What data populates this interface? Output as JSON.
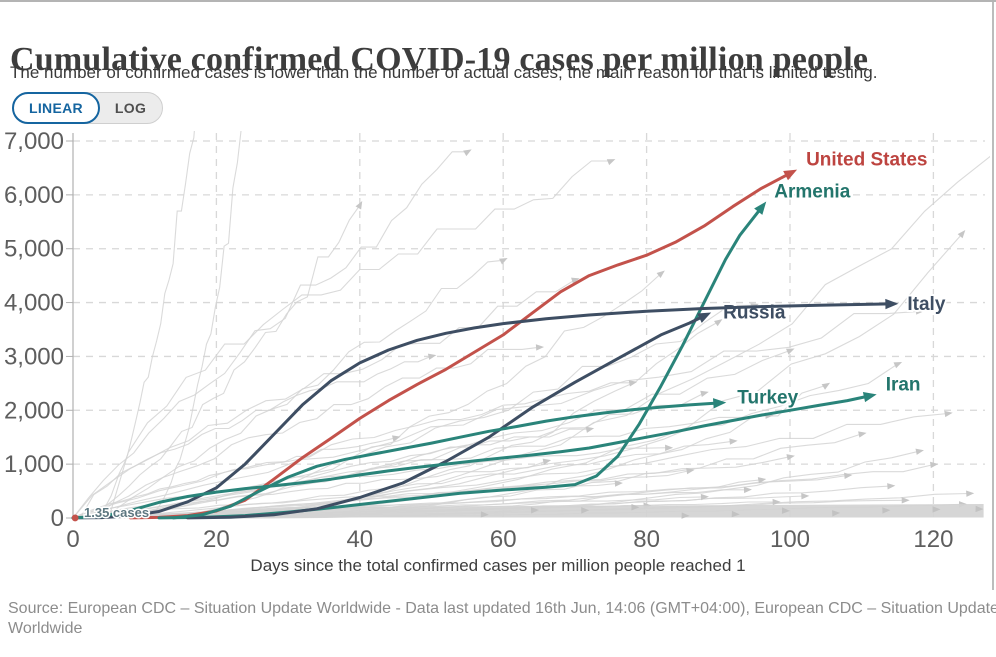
{
  "page": {
    "title": "Cumulative confirmed COVID-19 cases per million people",
    "subtitle": "The number of confirmed cases is lower than the number of actual cases; the main reason for that is limited testing."
  },
  "controls": {
    "linear_label": "LINEAR",
    "log_label": "LOG",
    "active": "LINEAR",
    "accent_color": "#1565a0"
  },
  "footer": {
    "source": "Source: European CDC – Situation Update Worldwide - Data last updated 16th Jun, 14:06 (GMT+04:00), European CDC – Situation Update Worldwide"
  },
  "chart_data": {
    "type": "line",
    "title": "Cumulative confirmed COVID-19 cases per million people",
    "xlabel": "Days since the total confirmed cases per million people reached 1",
    "ylabel": "",
    "xlim": [
      0,
      120
    ],
    "ylim": [
      0,
      7000
    ],
    "x_ticks": [
      0,
      20,
      40,
      60,
      80,
      100,
      120
    ],
    "y_ticks": [
      0,
      1000,
      2000,
      3000,
      4000,
      5000,
      6000,
      7000
    ],
    "grid": true,
    "legend_position": "end-of-line-labels",
    "annotation": {
      "text": "1.35 cases",
      "day": 0.3,
      "value": 1.35,
      "color": "#5d7780",
      "dot_color": "#c3524b"
    },
    "colors": {
      "highlight_red": "#c3524b",
      "highlight_teal": "#2a847a",
      "highlight_slate": "#3e4e63",
      "background_line": "#d4d4d4",
      "grid": "#d8d8d8",
      "axis": "#b0b0b0",
      "tick_text": "#5e5e5e"
    },
    "series": [
      {
        "name": "United States",
        "color": "#c3524b",
        "label_color": "#bd4440",
        "label_dx": 9,
        "label_dy": -4,
        "points": [
          [
            8,
            1
          ],
          [
            12,
            12
          ],
          [
            16,
            45
          ],
          [
            20,
            130
          ],
          [
            24,
            330
          ],
          [
            28,
            720
          ],
          [
            32,
            1120
          ],
          [
            36,
            1480
          ],
          [
            40,
            1850
          ],
          [
            44,
            2180
          ],
          [
            48,
            2480
          ],
          [
            52,
            2760
          ],
          [
            56,
            3080
          ],
          [
            60,
            3400
          ],
          [
            64,
            3800
          ],
          [
            68,
            4200
          ],
          [
            72,
            4500
          ],
          [
            76,
            4700
          ],
          [
            80,
            4880
          ],
          [
            84,
            5120
          ],
          [
            88,
            5420
          ],
          [
            92,
            5780
          ],
          [
            96,
            6120
          ],
          [
            100,
            6400
          ]
        ]
      },
      {
        "name": "Armenia",
        "color": "#2a847a",
        "label_color": "#23756c",
        "label_dx": 8,
        "label_dy": -4,
        "points": [
          [
            12,
            1
          ],
          [
            18,
            12
          ],
          [
            24,
            45
          ],
          [
            30,
            110
          ],
          [
            36,
            190
          ],
          [
            42,
            280
          ],
          [
            48,
            370
          ],
          [
            54,
            460
          ],
          [
            60,
            520
          ],
          [
            66,
            570
          ],
          [
            70,
            620
          ],
          [
            73,
            780
          ],
          [
            76,
            1150
          ],
          [
            79,
            1750
          ],
          [
            82,
            2450
          ],
          [
            85,
            3200
          ],
          [
            88,
            4000
          ],
          [
            91,
            4800
          ],
          [
            93,
            5250
          ],
          [
            96,
            5760
          ]
        ]
      },
      {
        "name": "Russia",
        "color": "#3e4e63",
        "label_color": "#3e4e63",
        "label_dx": 12,
        "label_dy": 6,
        "points": [
          [
            16,
            1
          ],
          [
            22,
            15
          ],
          [
            28,
            60
          ],
          [
            34,
            170
          ],
          [
            40,
            380
          ],
          [
            46,
            650
          ],
          [
            52,
            1050
          ],
          [
            58,
            1500
          ],
          [
            64,
            2050
          ],
          [
            70,
            2520
          ],
          [
            76,
            2960
          ],
          [
            82,
            3400
          ],
          [
            86,
            3620
          ],
          [
            88,
            3750
          ]
        ]
      },
      {
        "name": "Italy",
        "color": "#3e4e63",
        "label_color": "#3e4e63",
        "label_dx": 9,
        "label_dy": 6,
        "points": [
          [
            0,
            1
          ],
          [
            4,
            8
          ],
          [
            8,
            40
          ],
          [
            12,
            120
          ],
          [
            16,
            300
          ],
          [
            20,
            560
          ],
          [
            24,
            1000
          ],
          [
            28,
            1550
          ],
          [
            32,
            2100
          ],
          [
            36,
            2550
          ],
          [
            40,
            2880
          ],
          [
            44,
            3120
          ],
          [
            48,
            3300
          ],
          [
            52,
            3430
          ],
          [
            56,
            3530
          ],
          [
            60,
            3610
          ],
          [
            66,
            3700
          ],
          [
            72,
            3770
          ],
          [
            80,
            3840
          ],
          [
            88,
            3890
          ],
          [
            96,
            3925
          ],
          [
            104,
            3950
          ],
          [
            114,
            3975
          ]
        ]
      },
      {
        "name": "Turkey",
        "color": "#2a847a",
        "label_color": "#23756c",
        "label_dx": 11,
        "label_dy": 1,
        "points": [
          [
            14,
            1
          ],
          [
            18,
            60
          ],
          [
            22,
            220
          ],
          [
            26,
            500
          ],
          [
            30,
            760
          ],
          [
            34,
            960
          ],
          [
            38,
            1090
          ],
          [
            42,
            1190
          ],
          [
            46,
            1290
          ],
          [
            50,
            1390
          ],
          [
            54,
            1500
          ],
          [
            58,
            1610
          ],
          [
            62,
            1700
          ],
          [
            66,
            1800
          ],
          [
            70,
            1880
          ],
          [
            74,
            1950
          ],
          [
            78,
            2010
          ],
          [
            82,
            2060
          ],
          [
            86,
            2100
          ],
          [
            90,
            2135
          ]
        ]
      },
      {
        "name": "Iran",
        "color": "#2a847a",
        "label_color": "#23756c",
        "label_dx": 9,
        "label_dy": -4,
        "points": [
          [
            0,
            1
          ],
          [
            4,
            30
          ],
          [
            8,
            140
          ],
          [
            12,
            290
          ],
          [
            16,
            400
          ],
          [
            20,
            480
          ],
          [
            24,
            545
          ],
          [
            28,
            600
          ],
          [
            32,
            655
          ],
          [
            36,
            720
          ],
          [
            40,
            800
          ],
          [
            44,
            875
          ],
          [
            48,
            940
          ],
          [
            52,
            1000
          ],
          [
            56,
            1060
          ],
          [
            60,
            1115
          ],
          [
            64,
            1170
          ],
          [
            68,
            1230
          ],
          [
            72,
            1300
          ],
          [
            76,
            1400
          ],
          [
            80,
            1500
          ],
          [
            84,
            1600
          ],
          [
            88,
            1710
          ],
          [
            92,
            1810
          ],
          [
            96,
            1910
          ],
          [
            100,
            2000
          ],
          [
            104,
            2090
          ],
          [
            108,
            2180
          ],
          [
            111,
            2265
          ]
        ]
      }
    ],
    "background_series": [
      {
        "s": 3,
        "e": 18,
        "v": 8200,
        "p": 1.6,
        "a": 0
      },
      {
        "s": 10,
        "e": 26,
        "v": 9500,
        "p": 1.8,
        "a": 0
      },
      {
        "s": 0,
        "e": 55,
        "v": 6700,
        "p": 0.9,
        "a": 1
      },
      {
        "s": 5,
        "e": 75,
        "v": 6400,
        "p": 0.5,
        "a": 1
      },
      {
        "s": 2,
        "e": 40,
        "v": 5600,
        "p": 1.2,
        "a": 1
      },
      {
        "s": 8,
        "e": 128,
        "v": 6600,
        "p": 2.2,
        "a": 0
      },
      {
        "s": 0,
        "e": 124,
        "v": 5000,
        "p": 2.8,
        "a": 1
      },
      {
        "s": 4,
        "e": 60,
        "v": 4800,
        "p": 1.0,
        "a": 1
      },
      {
        "s": 12,
        "e": 82,
        "v": 4600,
        "p": 1.5,
        "a": 1
      },
      {
        "s": 0,
        "e": 70,
        "v": 4200,
        "p": 0.7,
        "a": 1
      },
      {
        "s": 6,
        "e": 95,
        "v": 4000,
        "p": 1.3,
        "a": 1
      },
      {
        "s": 0,
        "e": 118,
        "v": 3900,
        "p": 1.0,
        "a": 1
      },
      {
        "s": 15,
        "e": 90,
        "v": 3500,
        "p": 2.0,
        "a": 1
      },
      {
        "s": 3,
        "e": 65,
        "v": 3300,
        "p": 0.8,
        "a": 1
      },
      {
        "s": 0,
        "e": 100,
        "v": 3000,
        "p": 1.4,
        "a": 1
      },
      {
        "s": 9,
        "e": 115,
        "v": 2800,
        "p": 1.7,
        "a": 1
      },
      {
        "s": 0,
        "e": 78,
        "v": 2600,
        "p": 0.9,
        "a": 1
      },
      {
        "s": 18,
        "e": 105,
        "v": 2400,
        "p": 2.3,
        "a": 1
      },
      {
        "s": 2,
        "e": 88,
        "v": 2200,
        "p": 1.1,
        "a": 1
      },
      {
        "s": 0,
        "e": 122,
        "v": 2000,
        "p": 1.5,
        "a": 1
      },
      {
        "s": 7,
        "e": 97,
        "v": 1900,
        "p": 0.8,
        "a": 1
      },
      {
        "s": 0,
        "e": 72,
        "v": 1700,
        "p": 1.0,
        "a": 1
      },
      {
        "s": 12,
        "e": 110,
        "v": 1600,
        "p": 1.9,
        "a": 1
      },
      {
        "s": 4,
        "e": 92,
        "v": 1400,
        "p": 1.2,
        "a": 1
      },
      {
        "s": 0,
        "e": 83,
        "v": 1300,
        "p": 0.7,
        "a": 1
      },
      {
        "s": 20,
        "e": 118,
        "v": 1200,
        "p": 2.5,
        "a": 1
      },
      {
        "s": 2,
        "e": 100,
        "v": 1100,
        "p": 1.3,
        "a": 1
      },
      {
        "s": 0,
        "e": 66,
        "v": 1000,
        "p": 0.9,
        "a": 1
      },
      {
        "s": 10,
        "e": 120,
        "v": 950,
        "p": 1.6,
        "a": 1
      },
      {
        "s": 5,
        "e": 86,
        "v": 850,
        "p": 1.1,
        "a": 1
      },
      {
        "s": 0,
        "e": 108,
        "v": 780,
        "p": 1.4,
        "a": 1
      },
      {
        "s": 14,
        "e": 96,
        "v": 700,
        "p": 2.0,
        "a": 1
      },
      {
        "s": 0,
        "e": 76,
        "v": 640,
        "p": 0.8,
        "a": 1
      },
      {
        "s": 8,
        "e": 114,
        "v": 580,
        "p": 1.7,
        "a": 1
      },
      {
        "s": 3,
        "e": 94,
        "v": 520,
        "p": 1.0,
        "a": 1
      },
      {
        "s": 0,
        "e": 125,
        "v": 470,
        "p": 2.2,
        "a": 1
      },
      {
        "s": 16,
        "e": 102,
        "v": 420,
        "p": 1.2,
        "a": 1
      },
      {
        "s": 0,
        "e": 88,
        "v": 380,
        "p": 0.9,
        "a": 1
      },
      {
        "s": 6,
        "e": 116,
        "v": 340,
        "p": 1.5,
        "a": 1
      },
      {
        "s": 0,
        "e": 98,
        "v": 300,
        "p": 1.1,
        "a": 1
      },
      {
        "s": 11,
        "e": 124,
        "v": 260,
        "p": 1.8,
        "a": 1
      },
      {
        "s": 0,
        "e": 80,
        "v": 230,
        "p": 1.0,
        "a": 1
      },
      {
        "s": 1,
        "e": 50,
        "v": 2900,
        "p": 0.6,
        "a": 1
      },
      {
        "s": 0,
        "e": 45,
        "v": 1500,
        "p": 0.8,
        "a": 1
      }
    ],
    "dense_band": {
      "start_day": 2,
      "end_day": 127,
      "top_value": 260,
      "color": "#d2d2d2",
      "arrow_days": [
        58,
        65,
        72,
        79,
        86,
        93,
        100,
        107,
        114,
        121,
        127
      ]
    }
  }
}
